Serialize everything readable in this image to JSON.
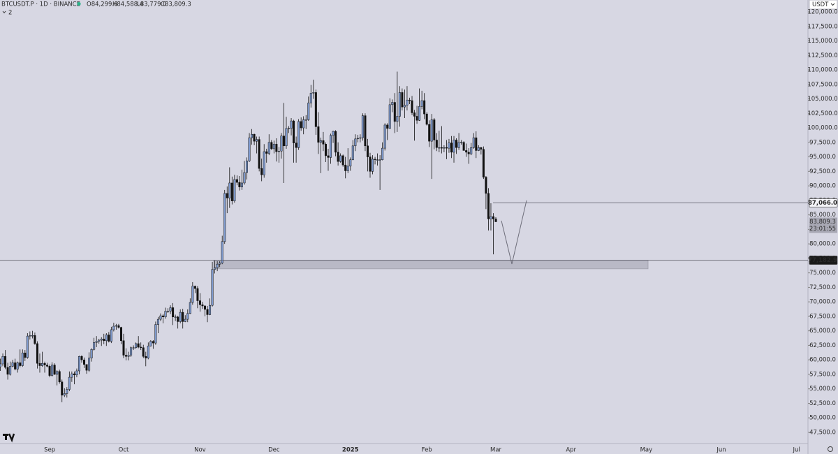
{
  "chart_data": {
    "type": "candlestick",
    "header": {
      "symbol": "BTCUSDT.P · 1D · BINANCE",
      "ohlc": [
        "O84,299.6",
        "H84,588.4",
        "L83,779.0",
        "C83,809.3"
      ],
      "indicator": "2",
      "currency": "USDT"
    },
    "up_color": "#7f9bd0",
    "down_color": "#111111",
    "categories": [
      null,
      null,
      null,
      null,
      null,
      null,
      null,
      null,
      null,
      null,
      null,
      null,
      null,
      null,
      null,
      null,
      null,
      null,
      null,
      null,
      "Sep",
      null,
      null,
      null,
      null,
      null,
      null,
      null,
      null,
      null,
      null,
      null,
      null,
      null,
      null,
      null,
      null,
      null,
      null,
      null,
      null,
      null,
      null,
      null,
      null,
      null,
      null,
      null,
      null,
      null,
      "Oct",
      null,
      null,
      null,
      null,
      null,
      null,
      null,
      null,
      null,
      null,
      null,
      null,
      null,
      null,
      null,
      null,
      null,
      null,
      null,
      null,
      null,
      null,
      null,
      null,
      null,
      null,
      null,
      null,
      null,
      null,
      "Nov",
      null,
      null,
      null,
      null,
      null,
      null,
      null,
      null,
      null,
      null,
      null,
      null,
      null,
      null,
      null,
      null,
      null,
      null,
      null,
      null,
      null,
      null,
      null,
      null,
      null,
      null,
      null,
      null,
      null,
      "Dec",
      null,
      null,
      null,
      null,
      null,
      null,
      null,
      null,
      null,
      null,
      null,
      null,
      null,
      null,
      null,
      null,
      null,
      null,
      null,
      null,
      null,
      null,
      null,
      null,
      null,
      null,
      null,
      null,
      null,
      null,
      "2025",
      null,
      null,
      null,
      null,
      null,
      null,
      null,
      null,
      null,
      null,
      null,
      null,
      null,
      null,
      null,
      null,
      null,
      null,
      null,
      null,
      null,
      null,
      null,
      null,
      null,
      null,
      null,
      null,
      null,
      null,
      "Feb",
      null,
      null,
      null,
      null,
      null,
      null,
      null,
      null,
      null,
      null,
      null,
      null,
      null,
      null,
      null,
      null,
      null,
      null,
      null,
      null,
      null,
      null,
      null,
      null,
      null,
      null,
      null,
      "Mar"
    ],
    "future_categories": [
      "Apr",
      "May",
      "Jun",
      "Jul"
    ],
    "open": [
      58800,
      59300,
      60600,
      58700,
      57500,
      58900,
      59500,
      58400,
      59500,
      59000,
      61200,
      60400,
      64100,
      64200,
      64200,
      62800,
      59400,
      59000,
      59400,
      59100,
      58900,
      57300,
      59100,
      57500,
      58000,
      56200,
      53900,
      54200,
      54900,
      57000,
      57600,
      57400,
      58100,
      60600,
      60000,
      59200,
      58200,
      60300,
      61800,
      63000,
      63200,
      63400,
      63600,
      63300,
      64300,
      63200,
      65200,
      65800,
      65900,
      65600,
      63300,
      60800,
      60600,
      60800,
      62100,
      62100,
      62800,
      62200,
      62100,
      60600,
      60300,
      62400,
      63200,
      62900,
      66100,
      67000,
      67600,
      67400,
      68400,
      68400,
      69000,
      67400,
      67400,
      66600,
      68200,
      66600,
      67000,
      68000,
      69900,
      72700,
      72300,
      70200,
      69500,
      69300,
      68700,
      67800,
      69400,
      75600,
      75900,
      76500,
      76700,
      80400,
      88700,
      87900,
      90500,
      87400,
      91100,
      90600,
      89800,
      90500,
      92300,
      94300,
      98300,
      98900,
      97700,
      98000,
      93000,
      91900,
      95900,
      95600,
      97500,
      96400,
      97200,
      95900,
      96000,
      98600,
      96900,
      99900,
      99900,
      101200,
      97400,
      96600,
      101100,
      100000,
      101400,
      101400,
      104300,
      106000,
      106100,
      100200,
      97500,
      97800,
      97200,
      95200,
      94900,
      98700,
      99400,
      95800,
      94200,
      95200,
      93600,
      92600,
      93400,
      94500,
      96900,
      98100,
      98200,
      98300,
      102100,
      96900,
      95000,
      92500,
      94600,
      94500,
      94500,
      94500,
      96500,
      100500,
      99900,
      104000,
      104400,
      101100,
      102000,
      106100,
      103600,
      103900,
      104800,
      104700,
      102600,
      102000,
      101300,
      103700,
      104700,
      102400,
      100600,
      97700,
      101400,
      97900,
      96600,
      96600,
      96500,
      96600,
      96500,
      97400,
      95800,
      97900,
      96600,
      97500,
      97500,
      96100,
      95800,
      95500,
      96600,
      98300,
      96100,
      96600,
      96300,
      91500,
      88700,
      84300,
      84700,
      84299.6
    ],
    "high": [
      60200,
      61100,
      61700,
      59500,
      59700,
      60000,
      60200,
      59700,
      61800,
      61800,
      61700,
      64600,
      64900,
      65000,
      64700,
      63200,
      61100,
      61400,
      59700,
      59500,
      59200,
      59600,
      59400,
      58200,
      58300,
      56600,
      55100,
      55300,
      58000,
      58000,
      58000,
      58500,
      60700,
      60800,
      60400,
      59200,
      61300,
      62000,
      63800,
      64100,
      63600,
      63900,
      64500,
      64600,
      64800,
      65700,
      66400,
      66200,
      66200,
      65700,
      64500,
      62000,
      61400,
      62300,
      62500,
      63000,
      64100,
      63000,
      62600,
      61400,
      63000,
      63400,
      63400,
      66600,
      67400,
      68000,
      67900,
      69000,
      68900,
      69400,
      69800,
      67800,
      67600,
      68700,
      68800,
      67700,
      68700,
      70600,
      73400,
      72800,
      72700,
      71500,
      70000,
      69400,
      69300,
      70600,
      76900,
      77100,
      77000,
      77000,
      81400,
      89300,
      89900,
      93200,
      91600,
      91900,
      91800,
      91700,
      92800,
      94300,
      94900,
      99100,
      99800,
      99000,
      98500,
      98500,
      94700,
      97200,
      96400,
      98900,
      97900,
      97800,
      98200,
      96700,
      99100,
      104300,
      101900,
      100300,
      101700,
      101400,
      98500,
      101500,
      101800,
      102000,
      102200,
      105400,
      107400,
      108300,
      106600,
      102700,
      98300,
      99300,
      97500,
      96400,
      99000,
      99500,
      99600,
      97500,
      95600,
      95400,
      95000,
      96500,
      94900,
      97900,
      98900,
      98800,
      98900,
      102500,
      102500,
      98100,
      95700,
      95300,
      95000,
      95600,
      95300,
      97500,
      100800,
      100800,
      105100,
      104900,
      106000,
      109700,
      107200,
      106800,
      106600,
      107200,
      105200,
      105500,
      103100,
      103800,
      106800,
      106400,
      106000,
      102700,
      101300,
      102400,
      101700,
      99100,
      99500,
      100300,
      97000,
      97900,
      98100,
      98600,
      98600,
      98200,
      99100,
      97900,
      97700,
      97300,
      96500,
      97400,
      99100,
      99400,
      97000,
      96700,
      96800,
      91700,
      89600,
      87000,
      85300,
      84588.4
    ],
    "low": [
      58100,
      58900,
      58400,
      56600,
      57300,
      58700,
      58200,
      57800,
      58700,
      58800,
      59800,
      60200,
      63500,
      63700,
      62600,
      58500,
      57800,
      58800,
      57800,
      58700,
      57000,
      57100,
      57400,
      55600,
      55900,
      52700,
      53600,
      53500,
      54600,
      56200,
      55800,
      57000,
      57500,
      59500,
      58600,
      57600,
      57900,
      59700,
      61600,
      62200,
      62800,
      62400,
      62700,
      62400,
      63000,
      62900,
      64900,
      65200,
      65400,
      62700,
      60300,
      59900,
      59900,
      60500,
      61700,
      61900,
      62000,
      61700,
      60300,
      58900,
      60100,
      62300,
      61900,
      62600,
      64600,
      66700,
      66300,
      67100,
      68100,
      67900,
      66000,
      66700,
      65400,
      66300,
      65400,
      66500,
      66500,
      67900,
      69500,
      71500,
      68900,
      68300,
      68800,
      67500,
      66500,
      67700,
      69200,
      74900,
      75300,
      76000,
      76500,
      80000,
      85300,
      86200,
      86800,
      87100,
      90100,
      89200,
      89300,
      90200,
      91100,
      94100,
      97100,
      97000,
      95600,
      92500,
      90800,
      91400,
      94000,
      95300,
      96200,
      95600,
      94200,
      94000,
      94700,
      90500,
      96400,
      99100,
      98700,
      94000,
      94000,
      96200,
      99500,
      98900,
      99800,
      101200,
      103500,
      105000,
      98800,
      95500,
      92200,
      96000,
      94100,
      92600,
      93800,
      97400,
      95100,
      93500,
      94000,
      93300,
      91300,
      92200,
      92600,
      94400,
      96000,
      97500,
      97500,
      97800,
      96000,
      92500,
      91400,
      92000,
      93700,
      93500,
      89300,
      94400,
      96100,
      97900,
      99800,
      102700,
      99100,
      99300,
      100200,
      103000,
      101700,
      103000,
      104100,
      102200,
      97800,
      100700,
      101200,
      103200,
      101500,
      100400,
      96700,
      91200,
      96300,
      96000,
      95800,
      95600,
      95800,
      94600,
      95700,
      94800,
      94000,
      95500,
      96200,
      97100,
      96100,
      95000,
      93800,
      95300,
      96400,
      94800,
      96000,
      95400,
      91200,
      86000,
      82300,
      82300,
      78200,
      83779.0
    ],
    "close": [
      59300,
      60600,
      58700,
      57500,
      58900,
      59500,
      58400,
      59500,
      59000,
      61200,
      60400,
      64100,
      64200,
      64200,
      62800,
      59400,
      59000,
      59400,
      59100,
      58900,
      57300,
      59100,
      57500,
      58000,
      56200,
      53900,
      54200,
      54900,
      57000,
      57600,
      57400,
      58100,
      60600,
      60000,
      59200,
      58200,
      60300,
      61800,
      63000,
      63200,
      63400,
      63600,
      63300,
      64300,
      63200,
      65200,
      65800,
      65900,
      65600,
      63300,
      60800,
      60600,
      60800,
      62100,
      62100,
      62800,
      62200,
      62100,
      60600,
      60300,
      62400,
      63200,
      62900,
      66100,
      67000,
      67600,
      67400,
      68400,
      68400,
      69000,
      67400,
      67400,
      66600,
      68200,
      66600,
      67000,
      68000,
      69900,
      72700,
      72300,
      70200,
      69500,
      69300,
      68700,
      67800,
      69400,
      75600,
      75900,
      76500,
      76700,
      80400,
      88700,
      87900,
      90500,
      87400,
      91100,
      90600,
      89800,
      90500,
      92300,
      94300,
      98300,
      98900,
      97700,
      98000,
      93000,
      91900,
      95900,
      95600,
      97500,
      96400,
      97200,
      95900,
      96000,
      98600,
      96900,
      99900,
      99900,
      101200,
      97400,
      96600,
      101100,
      100000,
      101400,
      101400,
      104300,
      106000,
      106100,
      100200,
      97500,
      97800,
      97200,
      95200,
      94900,
      98700,
      99400,
      95800,
      94200,
      95200,
      93600,
      92600,
      93400,
      94500,
      96900,
      98100,
      98200,
      98300,
      102100,
      96900,
      95000,
      92500,
      94600,
      94500,
      94500,
      94500,
      96500,
      100500,
      99900,
      104000,
      104400,
      101100,
      102000,
      106100,
      103600,
      103900,
      104800,
      104700,
      102600,
      102000,
      101300,
      103700,
      104700,
      102400,
      100600,
      97700,
      101400,
      97900,
      96600,
      96600,
      96500,
      96600,
      96500,
      97400,
      95800,
      97900,
      96600,
      97500,
      97500,
      96100,
      95800,
      95500,
      96600,
      98300,
      96100,
      96600,
      96300,
      91500,
      88700,
      84300,
      84700,
      84299.6,
      83809.3
    ],
    "ylim": [
      45573,
      122047
    ],
    "yticks": [
      {
        "value": 47500,
        "label": "47,500.0"
      },
      {
        "value": 50000,
        "label": "50,000.0"
      },
      {
        "value": 52500,
        "label": "52,500.0"
      },
      {
        "value": 55000,
        "label": "55,000.0"
      },
      {
        "value": 57500,
        "label": "57,500.0"
      },
      {
        "value": 60000,
        "label": "60,000.0"
      },
      {
        "value": 62500,
        "label": "62,500.0"
      },
      {
        "value": 65000,
        "label": "65,000.0"
      },
      {
        "value": 67500,
        "label": "67,500.0"
      },
      {
        "value": 70000,
        "label": "70,000.0"
      },
      {
        "value": 72500,
        "label": "72,500.0"
      },
      {
        "value": 75000,
        "label": "75,000.0"
      },
      {
        "value": 77500,
        "label": "77,500.0"
      },
      {
        "value": 80000,
        "label": "80,000.0"
      },
      {
        "value": 82500,
        "label": "82,500.0"
      },
      {
        "value": 85000,
        "label": "85,000.0"
      },
      {
        "value": 87500,
        "label": "87,500.0"
      },
      {
        "value": 90000,
        "label": "90,000.0"
      },
      {
        "value": 92500,
        "label": "92,500.0"
      },
      {
        "value": 95000,
        "label": "95,000.0"
      },
      {
        "value": 97500,
        "label": "97,500.0"
      },
      {
        "value": 100000,
        "label": "100,000.0"
      },
      {
        "value": 102500,
        "label": "102,500.0"
      },
      {
        "value": 105000,
        "label": "105,000.0"
      },
      {
        "value": 107500,
        "label": "107,500.0"
      },
      {
        "value": 110000,
        "label": "110,000.0"
      },
      {
        "value": 112500,
        "label": "112,500.0"
      },
      {
        "value": 115000,
        "label": "115,000.0"
      },
      {
        "value": 117500,
        "label": "117,500.0"
      },
      {
        "value": 120000,
        "label": "120,000.0"
      }
    ],
    "grid": false,
    "levels": [
      {
        "value": 87066.0,
        "label": "87,066.0"
      },
      {
        "value": 77182.9,
        "label": "77,182.9"
      }
    ],
    "zone": {
      "high": 77182.9,
      "low": 75700
    },
    "last_price": {
      "value": 83809.3,
      "label": "83,809.3",
      "countdown": "23:01:55"
    }
  }
}
